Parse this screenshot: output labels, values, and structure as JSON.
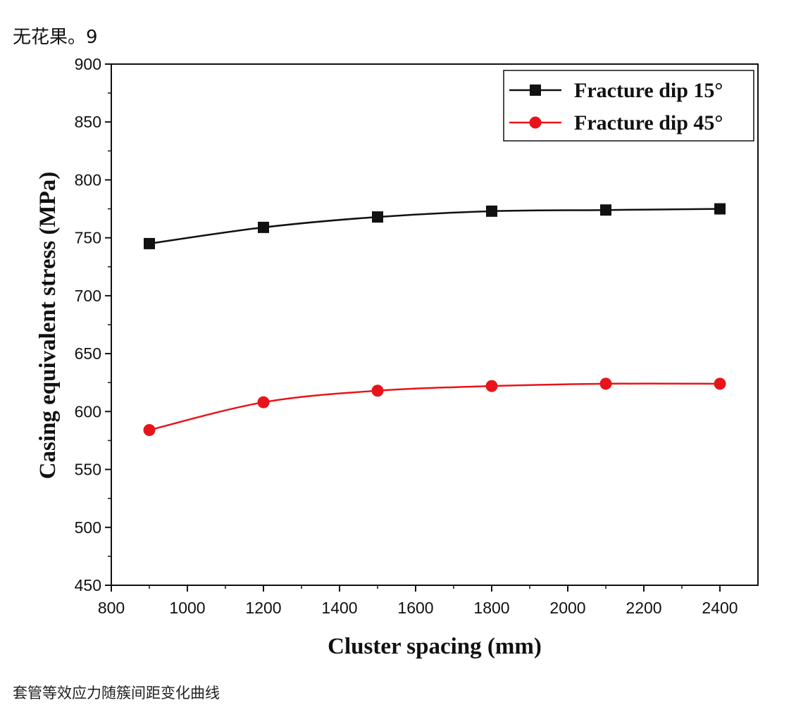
{
  "header": {
    "text": "无花果。9"
  },
  "caption": {
    "text": "套管等效应力随簇间距变化曲线"
  },
  "chart_data": {
    "type": "line",
    "title": "",
    "xlabel": "Cluster spacing (mm)",
    "ylabel": "Casing equivalent stress (MPa)",
    "xlim": [
      800,
      2500
    ],
    "ylim": [
      450,
      900
    ],
    "xticks": [
      800,
      1000,
      1200,
      1400,
      1600,
      1800,
      2000,
      2200,
      2400
    ],
    "yticks": [
      450,
      500,
      550,
      600,
      650,
      700,
      750,
      800,
      850,
      900
    ],
    "x": [
      900,
      1200,
      1500,
      1800,
      2100,
      2400
    ],
    "legend_position": "top-right",
    "series": [
      {
        "name": "Fracture dip 15°",
        "color": "#111111",
        "marker": "square",
        "values": [
          745,
          759,
          768,
          773,
          774,
          775
        ]
      },
      {
        "name": "Fracture dip 45°",
        "color": "#e8141b",
        "marker": "circle",
        "values": [
          584,
          608,
          618,
          622,
          624,
          624
        ]
      }
    ]
  }
}
